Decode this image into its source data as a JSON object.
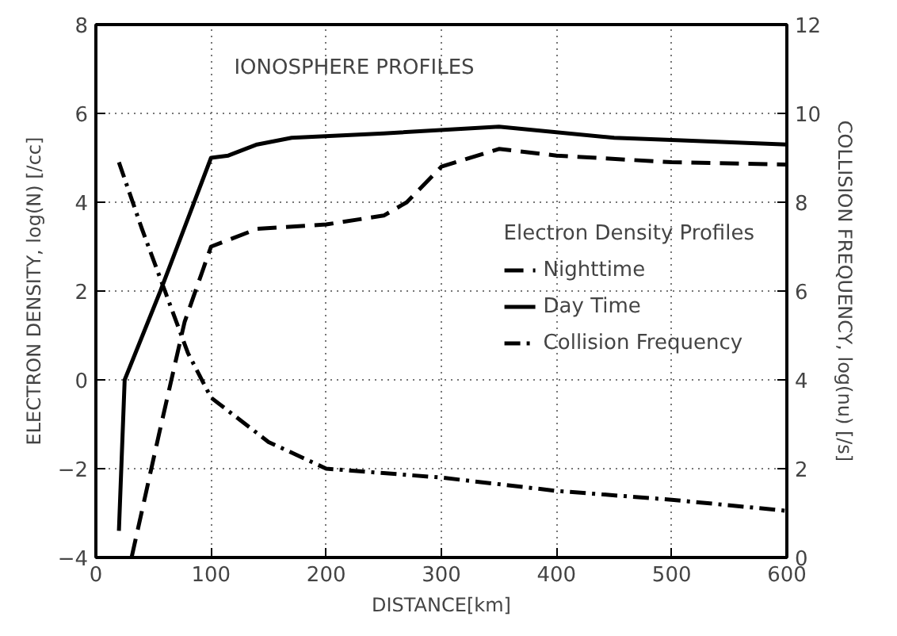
{
  "chart_data": {
    "type": "line",
    "title": "IONOSPHERE PROFILES",
    "xlabel": "DISTANCE[km]",
    "ylabel": "ELECTRON DENSITY, log(N) [/cc]",
    "y2label": "COLLISION FREQUENCY, log(nu) [/s]",
    "legend_title": "Electron Density Profiles",
    "legend": "right",
    "grid": true,
    "xlim": [
      0,
      600
    ],
    "xticks": [
      0,
      100,
      200,
      300,
      400,
      500,
      600
    ],
    "ylim": [
      -4,
      8
    ],
    "yticks": [
      -4,
      -2,
      0,
      2,
      4,
      6,
      8
    ],
    "y2lim": [
      0,
      12
    ],
    "y2ticks": [
      0,
      2,
      4,
      6,
      8,
      10,
      12
    ],
    "series": [
      {
        "name": "Nighttime",
        "color": "#000000",
        "line_style": "dashed",
        "x": [
          31,
          55,
          77,
          100,
          140,
          200,
          250,
          270,
          300,
          350,
          400,
          500,
          600
        ],
        "values": [
          -4,
          -1.2,
          1.3,
          3.0,
          3.4,
          3.5,
          3.7,
          4.0,
          4.8,
          5.2,
          5.05,
          4.9,
          4.85
        ]
      },
      {
        "name": "Day Time",
        "color": "#000000",
        "line_style": "solid",
        "x": [
          20,
          25,
          56,
          100,
          115,
          140,
          170,
          250,
          350,
          450,
          500,
          600
        ],
        "values": [
          -3.4,
          0,
          2,
          5.0,
          5.05,
          5.3,
          5.45,
          5.55,
          5.7,
          5.45,
          5.4,
          5.3
        ]
      },
      {
        "name": "Collision Frequency",
        "color": "#000000",
        "line_style": "dashdot",
        "axis": "y2",
        "x": [
          20,
          40,
          60,
          80,
          100,
          150,
          200,
          300,
          400,
          500,
          600
        ],
        "values": [
          8.9,
          7.4,
          6.0,
          4.6,
          3.6,
          2.6,
          2.0,
          1.8,
          1.5,
          1.3,
          1.05
        ]
      }
    ]
  }
}
